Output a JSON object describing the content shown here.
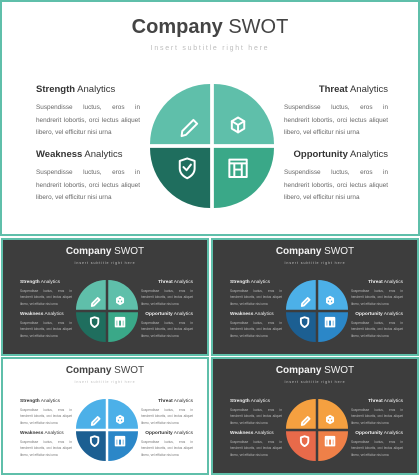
{
  "main": {
    "title_bold": "Company",
    "title_rest": " SWOT",
    "subtitle": "Insert subtitle right here",
    "colors": {
      "top_left": "#5fbfaa",
      "top_right": "#5fbfaa",
      "bottom_left": "#1f6e5e",
      "bottom_right": "#3aa888"
    },
    "strength": {
      "bold": "Strength",
      "rest": " Analytics",
      "body": "Suspendisse luctus, eros in hendrerit lobortis, orci lectus aliquet libero, vel efficitur nisi urna"
    },
    "weakness": {
      "bold": "Weakness",
      "rest": " Analytics",
      "body": "Suspendisse luctus, eros in hendrerit lobortis, orci lectus aliquet libero, vel efficitur nisi urna"
    },
    "threat": {
      "bold": "Threat",
      "rest": " Analytics",
      "body": "Suspendisse luctus, eros in hendrerit lobortis, orci lectus aliquet libero, vel efficitur nisi urna"
    },
    "opportunity": {
      "bold": "Opportunity",
      "rest": " Analytics",
      "body": "Suspendisse luctus, eros in hendrerit lobortis, orci lectus aliquet libero, vel efficitur nisi urna"
    },
    "icons": [
      "pencil-icon",
      "box-icon",
      "shield-icon",
      "gate-icon"
    ]
  },
  "thumbnails": [
    {
      "theme": "dark",
      "colors": {
        "top_left": "#5fbfaa",
        "top_right": "#5fbfaa",
        "bottom_left": "#1f6e5e",
        "bottom_right": "#3aa888"
      }
    },
    {
      "theme": "dark",
      "colors": {
        "top_left": "#4cb0e8",
        "top_right": "#4cb0e8",
        "bottom_left": "#1c5f92",
        "bottom_right": "#2b87c8"
      }
    },
    {
      "theme": "light",
      "colors": {
        "top_left": "#4cb0e8",
        "top_right": "#4cb0e8",
        "bottom_left": "#1c5f92",
        "bottom_right": "#2b87c8"
      }
    },
    {
      "theme": "dark",
      "colors": {
        "top_left": "#f5a040",
        "top_right": "#f5a040",
        "bottom_left": "#e86a4a",
        "bottom_right": "#ef8048"
      }
    }
  ]
}
